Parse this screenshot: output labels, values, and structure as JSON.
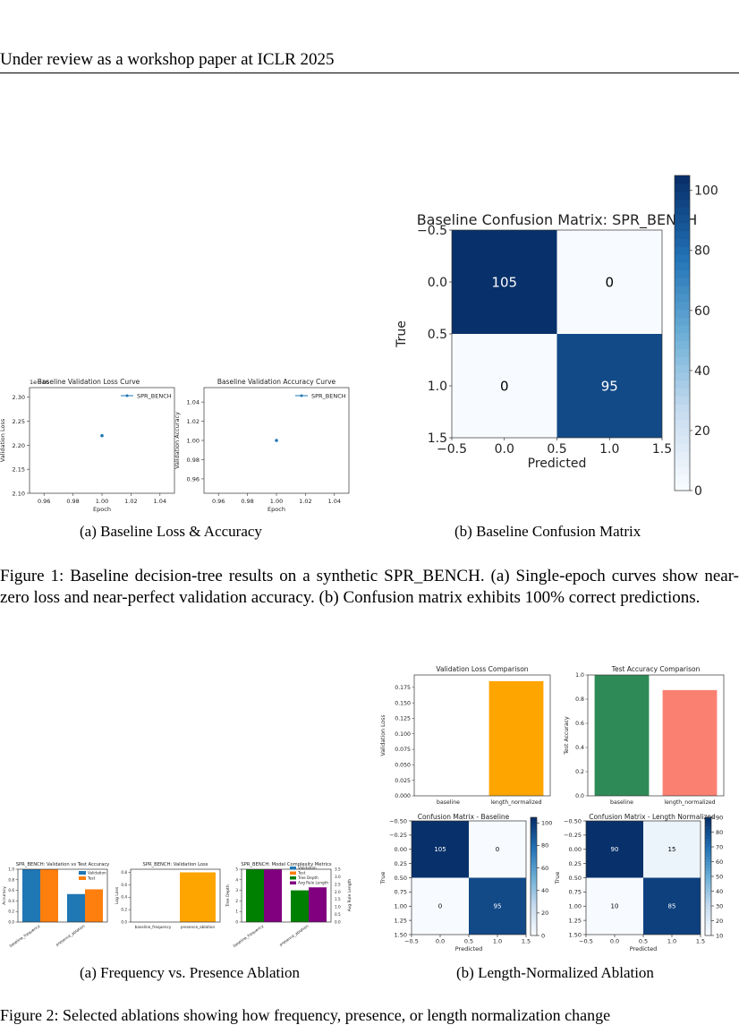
{
  "header": "Under review as a workshop paper at ICLR 2025",
  "figure1": {
    "caption": "Figure 1: Baseline decision-tree results on a synthetic SPR_BENCH. (a) Single-epoch curves show near-zero loss and near-perfect validation accuracy. (b) Confusion matrix exhibits 100% correct predictions.",
    "sub_a": "(a)  Baseline Loss & Accuracy",
    "sub_b": "(b)  Baseline Confusion Matrix"
  },
  "figure2": {
    "sub_a": "(a)  Frequency vs. Presence Ablation",
    "sub_b": "(b)  Length-Normalized Ablation"
  },
  "footer_partial": "Figure 2: Selected ablations showing how frequency, presence, or length normalization change",
  "chart_data": [
    {
      "id": "fig1a_loss",
      "type": "line",
      "title": "Baseline Validation Loss Curve",
      "xlabel": "Epoch",
      "ylabel": "Validation Loss",
      "offset_label": "1e−16",
      "legend": [
        "SPR_BENCH"
      ],
      "series": [
        {
          "name": "SPR_BENCH",
          "x": [
            1
          ],
          "y": [
            2.22
          ]
        }
      ],
      "xticks": [
        "0.96",
        "0.98",
        "1.00",
        "1.02",
        "1.04"
      ],
      "yticks": [
        "2.10",
        "2.15",
        "2.20",
        "2.25",
        "2.30"
      ],
      "xlim": [
        0.95,
        1.05
      ],
      "ylim": [
        2.1,
        2.32
      ]
    },
    {
      "id": "fig1a_acc",
      "type": "line",
      "title": "Baseline Validation Accuracy Curve",
      "xlabel": "Epoch",
      "ylabel": "Validation Accuracy",
      "legend": [
        "SPR_BENCH"
      ],
      "series": [
        {
          "name": "SPR_BENCH",
          "x": [
            1
          ],
          "y": [
            1.0
          ]
        }
      ],
      "xticks": [
        "0.96",
        "0.98",
        "1.00",
        "1.02",
        "1.04"
      ],
      "yticks": [
        "0.96",
        "0.98",
        "1.00",
        "1.02",
        "1.04"
      ],
      "xlim": [
        0.95,
        1.05
      ],
      "ylim": [
        0.945,
        1.055
      ]
    },
    {
      "id": "fig1b_confusion",
      "type": "heatmap",
      "title": "Baseline Confusion Matrix: SPR_BENCH",
      "xlabel": "Predicted",
      "ylabel": "True",
      "matrix": [
        [
          105,
          0
        ],
        [
          0,
          95
        ]
      ],
      "ticks": [
        "−0.5",
        "0.0",
        "0.5",
        "1.0",
        "1.5"
      ],
      "colorbar_ticks": [
        "0",
        "20",
        "40",
        "60",
        "80",
        "100"
      ],
      "vmax": 105
    },
    {
      "id": "fig2a_acc",
      "type": "bar",
      "title": "SPR_BENCH: Validation vs Test Accuracy",
      "ylabel": "Accuracy",
      "categories": [
        "baseline_frequency",
        "presence_ablation"
      ],
      "series": [
        {
          "name": "Validation",
          "values": [
            1.0,
            0.53
          ]
        },
        {
          "name": "Test",
          "values": [
            1.0,
            0.62
          ]
        }
      ],
      "yticks": [
        "0.0",
        "0.2",
        "0.4",
        "0.6",
        "0.8",
        "1.0"
      ],
      "ylim": [
        0,
        1.0
      ]
    },
    {
      "id": "fig2a_loss",
      "type": "bar",
      "title": "SPR_BENCH: Validation Loss",
      "ylabel": "Log Loss",
      "categories": [
        "baseline_frequency",
        "presence_ablation"
      ],
      "values": [
        0.0,
        0.8
      ],
      "yticks": [
        "0.0",
        "0.2",
        "0.4",
        "0.6",
        "0.8"
      ],
      "ylim": [
        0,
        0.85
      ]
    },
    {
      "id": "fig2a_complexity",
      "type": "bar",
      "title": "SPR_BENCH: Model Complexity Metrics",
      "ylabel": "Tree Depth",
      "y2label": "Avg Rule Length",
      "categories": [
        "baseline_frequency",
        "presence_ablation"
      ],
      "series": [
        {
          "name": "Tree Depth",
          "values": [
            5,
            3
          ]
        },
        {
          "name": "Avg Rule Length",
          "values": [
            3.5,
            2.3
          ]
        }
      ],
      "legend": [
        "Validation",
        "Test",
        "Tree Depth",
        "Avg Rule Length"
      ],
      "yticks": [
        "0",
        "1",
        "2",
        "3",
        "4",
        "5"
      ],
      "y2ticks": [
        "0.0",
        "0.5",
        "1.0",
        "1.5",
        "2.0",
        "2.5",
        "3.0",
        "3.5"
      ]
    },
    {
      "id": "fig2b_valloss",
      "type": "bar",
      "title": "Validation Loss Comparison",
      "ylabel": "Validation Loss",
      "categories": [
        "baseline",
        "length_normalized"
      ],
      "values": [
        0.0,
        0.185
      ],
      "yticks": [
        "0.000",
        "0.025",
        "0.050",
        "0.075",
        "0.100",
        "0.125",
        "0.150",
        "0.175"
      ],
      "ylim": [
        0,
        0.195
      ]
    },
    {
      "id": "fig2b_testacc",
      "type": "bar",
      "title": "Test Accuracy Comparison",
      "ylabel": "Test Accuracy",
      "categories": [
        "baseline",
        "length_normalized"
      ],
      "values": [
        1.0,
        0.875
      ],
      "yticks": [
        "0.0",
        "0.2",
        "0.4",
        "0.6",
        "0.8",
        "1.0"
      ],
      "ylim": [
        0,
        1.0
      ]
    },
    {
      "id": "fig2b_cm_baseline",
      "type": "heatmap",
      "title": "Confusion Matrix - Baseline",
      "xlabel": "Predicted",
      "ylabel": "True",
      "matrix": [
        [
          105,
          0
        ],
        [
          0,
          95
        ]
      ],
      "xticks": [
        "−0.5",
        "0.0",
        "0.5",
        "1.0",
        "1.5"
      ],
      "yticks": [
        "−0.50",
        "−0.25",
        "0.00",
        "0.25",
        "0.50",
        "0.75",
        "1.00",
        "1.25",
        "1.50"
      ],
      "colorbar_ticks": [
        "0",
        "20",
        "40",
        "60",
        "80",
        "100"
      ],
      "vmax": 105
    },
    {
      "id": "fig2b_cm_lengthnorm",
      "type": "heatmap",
      "title": "Confusion Matrix - Length Normalized",
      "xlabel": "Predicted",
      "ylabel": "True",
      "matrix": [
        [
          90,
          15
        ],
        [
          10,
          85
        ]
      ],
      "xticks": [
        "−0.5",
        "0.0",
        "0.5",
        "1.0",
        "1.5"
      ],
      "yticks": [
        "−0.50",
        "−0.25",
        "0.00",
        "0.25",
        "0.50",
        "0.75",
        "1.00",
        "1.25",
        "1.50"
      ],
      "colorbar_ticks": [
        "10",
        "20",
        "30",
        "40",
        "50",
        "60",
        "70",
        "80",
        "90"
      ],
      "vmin": 10,
      "vmax": 90
    }
  ]
}
